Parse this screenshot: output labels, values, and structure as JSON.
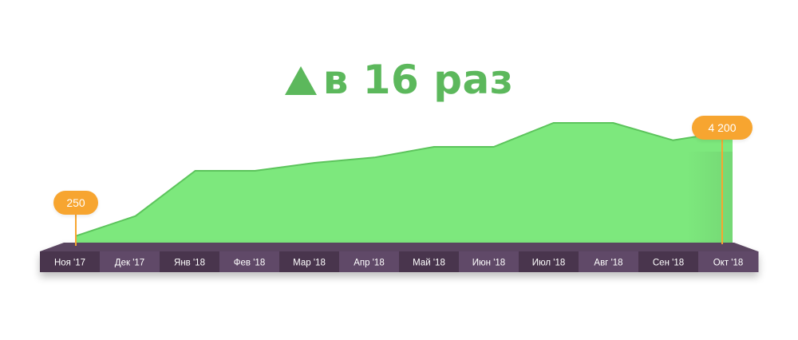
{
  "headline": {
    "arrow_icon": "up-triangle-icon",
    "text": "в 16 раз",
    "color": "#5cb85c"
  },
  "chart_data": {
    "type": "area",
    "title": "",
    "xlabel": "",
    "ylabel": "",
    "categories": [
      "Ноя '17",
      "Дек '17",
      "Янв '18",
      "Фев '18",
      "Мар '18",
      "Апр '18",
      "Май '18",
      "Июн '18",
      "Июл '18",
      "Авг '18",
      "Сен '18",
      "Окт '18"
    ],
    "series": [
      {
        "values": [
          250,
          1000,
          2700,
          2700,
          3000,
          3200,
          3600,
          3600,
          4500,
          4500,
          3850,
          4200
        ]
      }
    ],
    "ylim": [
      0,
      4800
    ],
    "grid": false,
    "legend": "none",
    "annotations": [
      {
        "category": "Ноя '17",
        "label": "250"
      },
      {
        "category": "Окт '18",
        "label": "4 200"
      }
    ],
    "colors": {
      "area_fill": "#7de87d",
      "area_line": "#5cc45c",
      "callout": "#f7a530",
      "band_dark": "#48354e",
      "band_light": "#614a67",
      "band_top": "#5a4560",
      "tick_text": "#ffffff"
    }
  }
}
